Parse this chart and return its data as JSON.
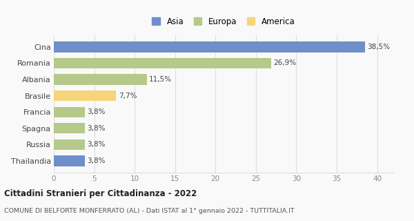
{
  "categories": [
    "Cina",
    "Romania",
    "Albania",
    "Brasile",
    "Francia",
    "Spagna",
    "Russia",
    "Thailandia"
  ],
  "values": [
    38.5,
    26.9,
    11.5,
    7.7,
    3.8,
    3.8,
    3.8,
    3.8
  ],
  "labels": [
    "38,5%",
    "26,9%",
    "11,5%",
    "7,7%",
    "3,8%",
    "3,8%",
    "3,8%",
    "3,8%"
  ],
  "colors": [
    "#6e8fc9",
    "#b5c98a",
    "#b5c98a",
    "#f5d47a",
    "#b5c98a",
    "#b5c98a",
    "#b5c98a",
    "#6e8fc9"
  ],
  "legend_labels": [
    "Asia",
    "Europa",
    "America"
  ],
  "legend_colors": [
    "#6e8fc9",
    "#b5c98a",
    "#f5d47a"
  ],
  "title": "Cittadini Stranieri per Cittadinanza - 2022",
  "subtitle": "COMUNE DI BELFORTE MONFERRATO (AL) - Dati ISTAT al 1° gennaio 2022 - TUTTITALIA.IT",
  "xlim": [
    0,
    42
  ],
  "xticks": [
    0,
    5,
    10,
    15,
    20,
    25,
    30,
    35,
    40
  ],
  "background_color": "#f9f9f9",
  "grid_color": "#dddddd"
}
